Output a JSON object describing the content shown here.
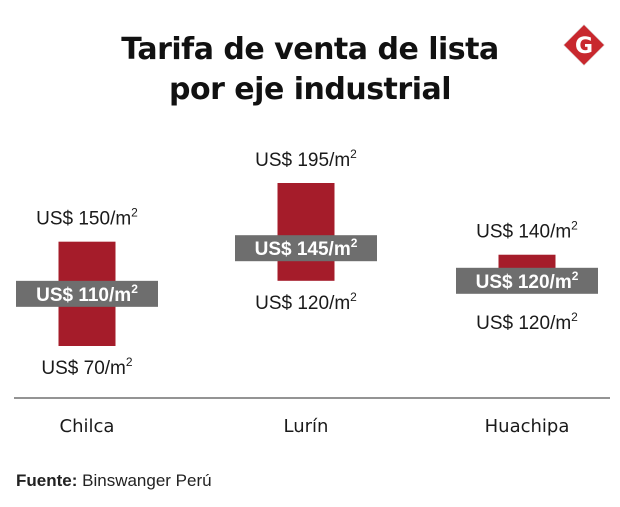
{
  "title": {
    "line1": "Tarifa de venta de lista",
    "line2": "por eje industrial"
  },
  "logo": {
    "letter": "G",
    "icon": "gestion-logo-icon"
  },
  "source": {
    "label": "Fuente:",
    "text": "Binswanger Perú"
  },
  "colors": {
    "bar": "#a51c2a",
    "label_box": "#6e6e6e",
    "label_text": "#ffffff",
    "axis": "#555555",
    "logo_red": "#c8282e",
    "logo_gray": "#e6e6e6"
  },
  "chart_data": {
    "type": "range-bar",
    "categories": [
      "Chilca",
      "Lurín",
      "Huachipa"
    ],
    "unit_prefix": "US$ ",
    "unit_suffix": "/m",
    "unit_exponent": "2",
    "series": [
      {
        "high": [
          150,
          195,
          140
        ],
        "mid": [
          110,
          145,
          120
        ],
        "low": [
          70,
          120,
          120
        ]
      }
    ]
  }
}
